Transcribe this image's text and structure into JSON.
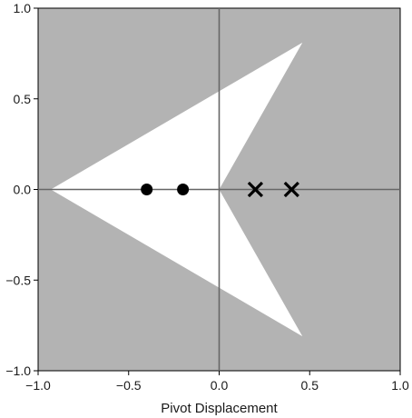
{
  "chart_data": {
    "type": "scatter",
    "title": "",
    "xlabel": "Pivot Displacement",
    "ylabel": "",
    "xlim": [
      -1.0,
      1.0
    ],
    "ylim": [
      -1.0,
      1.0
    ],
    "x_ticks": [
      -1.0,
      -0.5,
      0.0,
      0.5,
      1.0
    ],
    "y_ticks": [
      -1.0,
      -0.5,
      0.0,
      0.5,
      1.0
    ],
    "x_tick_labels": [
      "−1.0",
      "−0.5",
      "0.0",
      "0.5",
      "1.0"
    ],
    "y_tick_labels": [
      "−1.0",
      "−0.5",
      "0.0",
      "0.5",
      "1.0"
    ],
    "grid": false,
    "reference_lines": {
      "x": 0.0,
      "y": 0.0
    },
    "background_color": "#b3b3b3",
    "region": {
      "fill": "#ffffff",
      "vertices": [
        [
          -0.93,
          0.0
        ],
        [
          0.46,
          0.81
        ],
        [
          0.0,
          0.0
        ],
        [
          0.46,
          -0.81
        ]
      ]
    },
    "markers": [
      {
        "shape": "circle",
        "color": "#000000",
        "points": [
          [
            -0.4,
            0.0
          ],
          [
            -0.2,
            0.0
          ]
        ]
      },
      {
        "shape": "x",
        "color": "#000000",
        "points": [
          [
            0.2,
            0.0
          ],
          [
            0.4,
            0.0
          ]
        ]
      }
    ]
  }
}
